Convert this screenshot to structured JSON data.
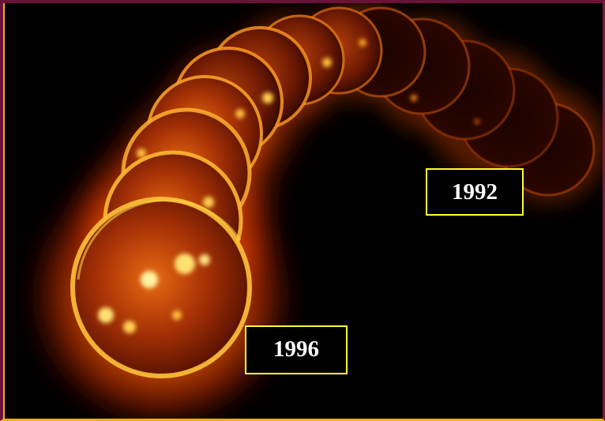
{
  "labels": {
    "start_year": "1992",
    "end_year": "1996"
  },
  "colors": {
    "border_left_accent": "#f2b100",
    "border_top": "#6b1238",
    "label_border": "#ffff33",
    "label_text": "#ffffff",
    "background": "#000000",
    "corona_bright": "#ffd24a",
    "corona_mid": "#ff7a12",
    "corona_dark": "#c02a02"
  }
}
